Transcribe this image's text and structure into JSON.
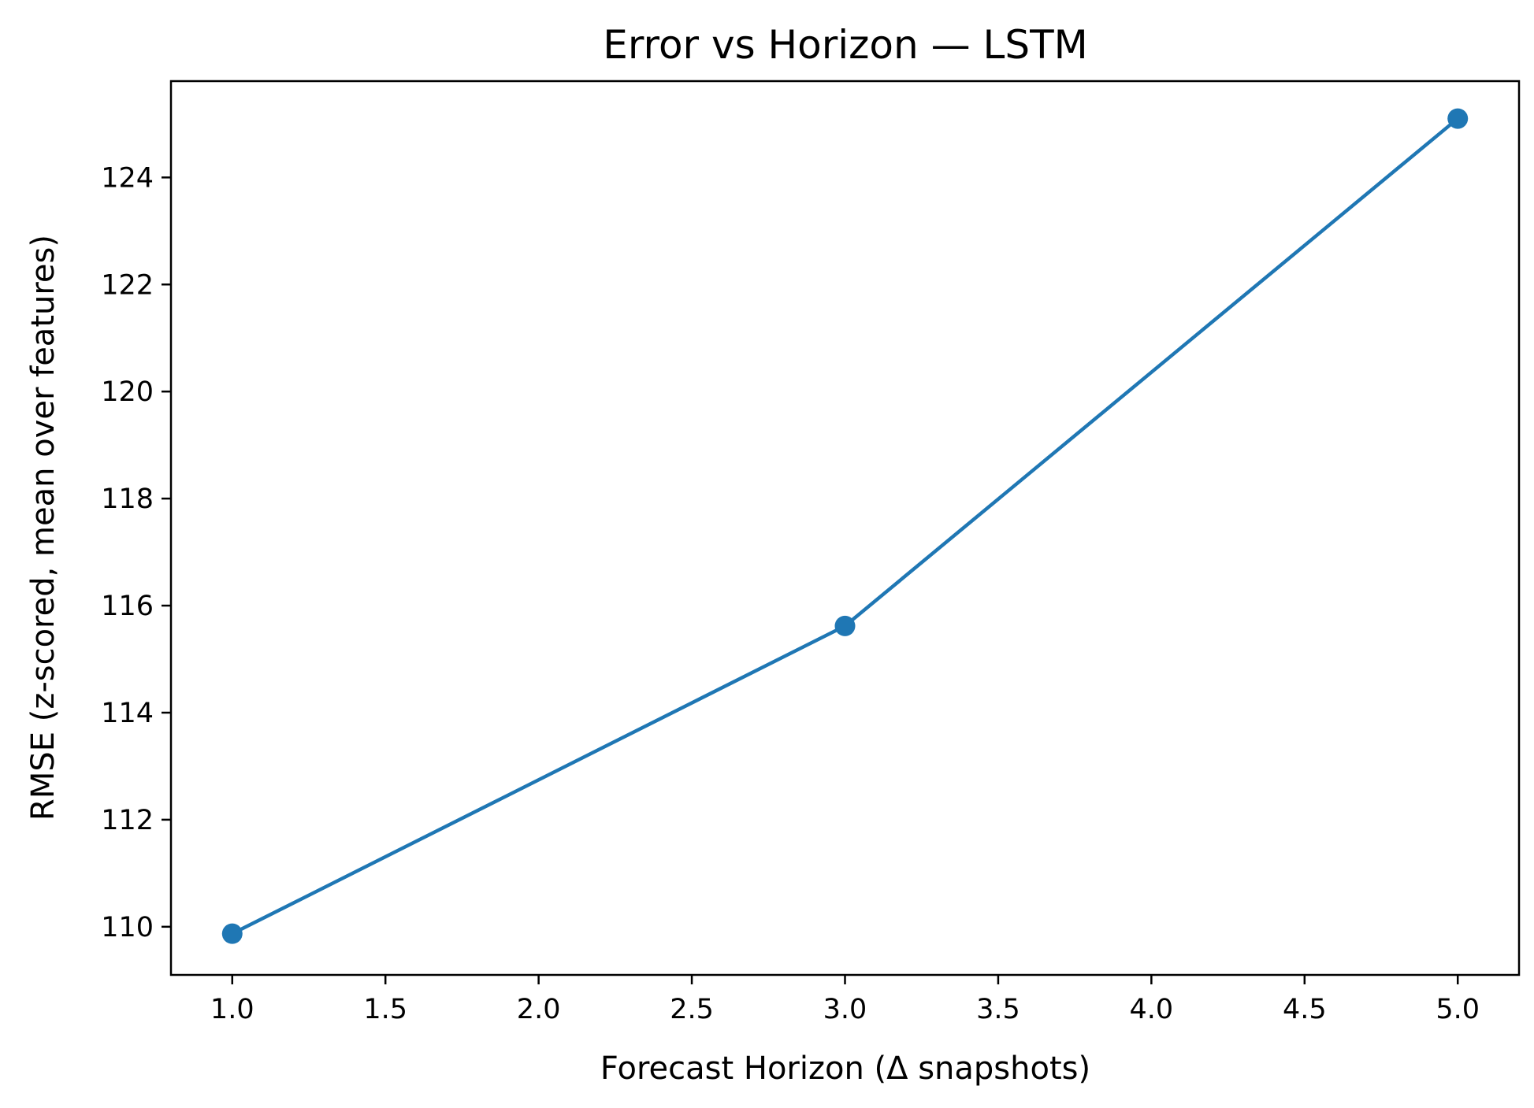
{
  "chart_data": {
    "type": "line",
    "title": "Error vs Horizon — LSTM",
    "xlabel": "Forecast Horizon (Δ snapshots)",
    "ylabel": "RMSE (z-scored, mean over features)",
    "xlim": [
      0.8,
      5.2
    ],
    "ylim": [
      109.1,
      125.8
    ],
    "xticks": [
      1.0,
      1.5,
      2.0,
      2.5,
      3.0,
      3.5,
      4.0,
      4.5,
      5.0
    ],
    "xtick_labels": [
      "1.0",
      "1.5",
      "2.0",
      "2.5",
      "3.0",
      "3.5",
      "4.0",
      "4.5",
      "5.0"
    ],
    "yticks": [
      110,
      112,
      114,
      116,
      118,
      120,
      122,
      124
    ],
    "ytick_labels": [
      "110",
      "112",
      "114",
      "116",
      "118",
      "120",
      "122",
      "124"
    ],
    "grid": false,
    "color": "#1f77b4",
    "series": [
      {
        "name": "LSTM",
        "x": [
          1,
          3,
          5
        ],
        "y": [
          109.87,
          115.62,
          125.1
        ],
        "marker": "circle"
      }
    ]
  }
}
